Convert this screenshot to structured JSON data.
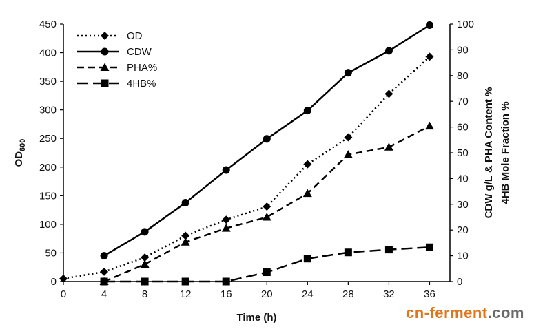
{
  "chart_data": {
    "type": "line",
    "title": "",
    "xlabel": "Time (h)",
    "ylabel_left": "OD600",
    "ylabel_left_main": "OD",
    "ylabel_left_sub": "600",
    "ylabel_right_line1": "CDW g/L & PHA Content %",
    "ylabel_right_line2": "4HB Mole Fraction %",
    "x": [
      0,
      4,
      8,
      12,
      16,
      20,
      24,
      28,
      32,
      36
    ],
    "x_ticks": [
      "0",
      "4",
      "8",
      "12",
      "16",
      "20",
      "24",
      "28",
      "32",
      "36"
    ],
    "xlim": [
      0,
      38
    ],
    "ylim_left": [
      0,
      450
    ],
    "y_ticks_left": [
      "0",
      "50",
      "100",
      "150",
      "200",
      "250",
      "300",
      "350",
      "400",
      "450"
    ],
    "ylim_right": [
      0,
      100
    ],
    "y_ticks_right": [
      "0",
      "10",
      "20",
      "30",
      "40",
      "50",
      "60",
      "70",
      "80",
      "90",
      "100"
    ],
    "grid": false,
    "legend_position": "top-left",
    "series": [
      {
        "name": "OD",
        "axis": "left",
        "marker": "diamond",
        "dash": "dotted",
        "x": [
          0,
          4,
          8,
          12,
          16,
          20,
          24,
          28,
          32,
          36
        ],
        "values": [
          5,
          17,
          42,
          80,
          108,
          131,
          205,
          252,
          328,
          393
        ]
      },
      {
        "name": "CDW",
        "axis": "right",
        "marker": "circle",
        "dash": "solid",
        "x": [
          4,
          8,
          12,
          16,
          20,
          24,
          28,
          32,
          36
        ],
        "values": [
          10,
          19.3,
          30.6,
          43.3,
          55.4,
          66.4,
          81.1,
          89.6,
          99.6
        ]
      },
      {
        "name": "PHA%",
        "axis": "right",
        "marker": "triangle",
        "dash": "dashed",
        "x": [
          4,
          8,
          12,
          16,
          20,
          24,
          28,
          32,
          36
        ],
        "values": [
          0,
          6.7,
          15.3,
          20.7,
          25,
          34.2,
          49.3,
          52.2,
          60.4
        ]
      },
      {
        "name": "4HB%",
        "axis": "right",
        "marker": "square",
        "dash": "longdash",
        "x": [
          4,
          8,
          12,
          16,
          20,
          24,
          28,
          32,
          36
        ],
        "values": [
          0,
          0,
          0,
          0,
          3.6,
          8.9,
          11.3,
          12.4,
          13.3
        ]
      }
    ]
  },
  "watermark": {
    "part1": "cn-ferment",
    "part2": ".com",
    "color1": "#e0761c",
    "color2": "#6a6a6a"
  }
}
